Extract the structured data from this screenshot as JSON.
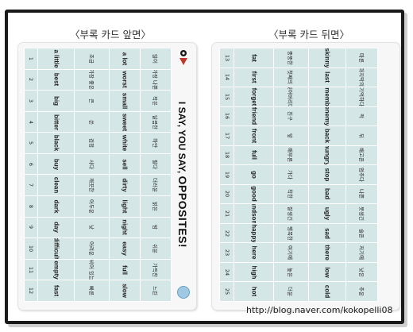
{
  "titles": {
    "front": "〈부록 카드 앞면〉",
    "back": "〈부록 카드 뒤면〉"
  },
  "front": {
    "heading": "I SAY, YOU SAY,",
    "heading_emph": "OPPOSITES!",
    "rows": [
      {
        "n": "1",
        "w": "a little",
        "k": "조금",
        "w2": "a lot",
        "k2": "많이"
      },
      {
        "n": "2",
        "w": "best",
        "k": "가장 좋은",
        "w2": "worst",
        "k2": "가장 나쁜"
      },
      {
        "n": "3",
        "w": "big",
        "k": "큰",
        "w2": "small",
        "k2": "작은"
      },
      {
        "n": "4",
        "w": "bitter",
        "k": "쓴",
        "w2": "sweet",
        "k2": "달콤한"
      },
      {
        "n": "5",
        "w": "black",
        "k": "검정",
        "w2": "white",
        "k2": "하얀"
      },
      {
        "n": "6",
        "w": "buy",
        "k": "사다",
        "w2": "sell",
        "k2": "팔다"
      },
      {
        "n": "7",
        "w": "clean",
        "k": "깨끗한",
        "w2": "dirty",
        "k2": "더러운"
      },
      {
        "n": "8",
        "w": "dark",
        "k": "어두운",
        "w2": "light",
        "k2": "밝은"
      },
      {
        "n": "9",
        "w": "day",
        "k": "낮",
        "w2": "night",
        "k2": "밤"
      },
      {
        "n": "10",
        "w": "difficult",
        "k": "어려운",
        "w2": "easy",
        "k2": "쉬운"
      },
      {
        "n": "11",
        "w": "empty",
        "k": "비어 있는",
        "w2": "full",
        "k2": "가득찬"
      },
      {
        "n": "12",
        "w": "fast",
        "k": "빠른",
        "w2": "slow",
        "k2": "느린"
      }
    ]
  },
  "back": {
    "rows": [
      {
        "n": "13",
        "w": "fat",
        "k": "뚱뚱한",
        "w2": "skinny",
        "k2": "마른"
      },
      {
        "n": "14",
        "w": "first",
        "k": "첫째의",
        "w2": "last",
        "k2": "마지막의"
      },
      {
        "n": "15",
        "w": "forget",
        "k": "잊어버리다",
        "w2": "remember",
        "k2": "기억하다"
      },
      {
        "n": "16",
        "w": "friend",
        "k": "친구",
        "w2": "enemy",
        "k2": "적"
      },
      {
        "n": "17",
        "w": "front",
        "k": "앞",
        "w2": "back",
        "k2": "뒤"
      },
      {
        "n": "18",
        "w": "full",
        "k": "배부른",
        "w2": "hungry",
        "k2": "배고픈"
      },
      {
        "n": "19",
        "w": "go",
        "k": "가다",
        "w2": "stop",
        "k2": "멈추다"
      },
      {
        "n": "20",
        "w": "good",
        "k": "착한",
        "w2": "bad",
        "k2": "나쁜"
      },
      {
        "n": "21",
        "w": "handsome",
        "k": "잘생긴",
        "w2": "ugly",
        "k2": "못생긴"
      },
      {
        "n": "22",
        "w": "happy",
        "k": "행복한",
        "w2": "sad",
        "k2": "슬픈"
      },
      {
        "n": "23",
        "w": "here",
        "k": "여기에",
        "w2": "there",
        "k2": "저기에"
      },
      {
        "n": "24",
        "w": "high",
        "k": "높은",
        "w2": "low",
        "k2": "낮은"
      },
      {
        "n": "25",
        "w": "hot",
        "k": "더운",
        "w2": "cold",
        "k2": "추운"
      }
    ]
  },
  "watermark": "http://blog.naver.com/kokopelli08",
  "colors": {
    "cell_bg": "#d4e6e6",
    "frame": "#1a1a1a"
  }
}
